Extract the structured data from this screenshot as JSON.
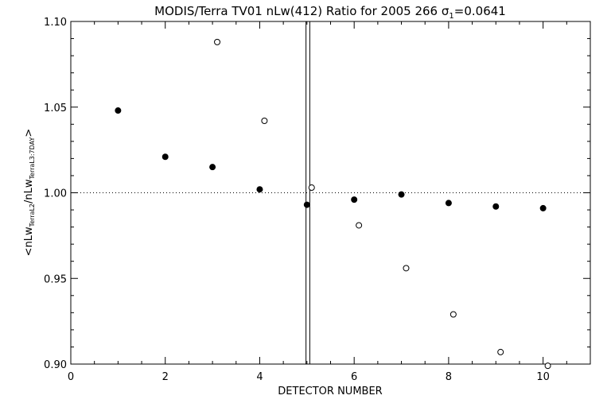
{
  "chart_data": {
    "type": "scatter",
    "title_prefix": "MODIS/Terra TV01 nLw(412) Ratio for 2005 266 ",
    "title_sigma": "σ",
    "title_sigma_sub": "1",
    "title_suffix": "=0.0641",
    "xlabel": "DETECTOR NUMBER",
    "ylabel_parts": {
      "open": "<nLw",
      "sub1": "TerraL2",
      "mid": "/nLw",
      "sub2": "TerraL3:7DAY",
      "close": ">"
    },
    "xlim": [
      0,
      11
    ],
    "ylim": [
      0.9,
      1.1
    ],
    "x_ticks": [
      0,
      2,
      4,
      6,
      8,
      10
    ],
    "x_tick_labels": [
      "0",
      "2",
      "4",
      "6",
      "8",
      "10"
    ],
    "y_ticks": [
      0.9,
      0.95,
      1.0,
      1.05,
      1.1
    ],
    "y_tick_labels": [
      "0.90",
      "0.95",
      "1.00",
      "1.05",
      "1.10"
    ],
    "reference_line_y": 1.0,
    "vertical_lines_x": [
      4.98,
      5.06
    ],
    "series": [
      {
        "marker": "filled-circle",
        "x": [
          1,
          2,
          3,
          4,
          5,
          6,
          7,
          8,
          9,
          10
        ],
        "y": [
          1.048,
          1.021,
          1.015,
          1.002,
          0.993,
          0.996,
          0.999,
          0.994,
          0.992,
          0.991
        ]
      },
      {
        "marker": "open-circle",
        "x": [
          3.1,
          4.1,
          5.1,
          6.1,
          7.1,
          8.1,
          9.1,
          10.1
        ],
        "y": [
          1.088,
          1.042,
          1.003,
          0.981,
          0.956,
          0.929,
          0.907,
          0.899
        ]
      }
    ]
  }
}
